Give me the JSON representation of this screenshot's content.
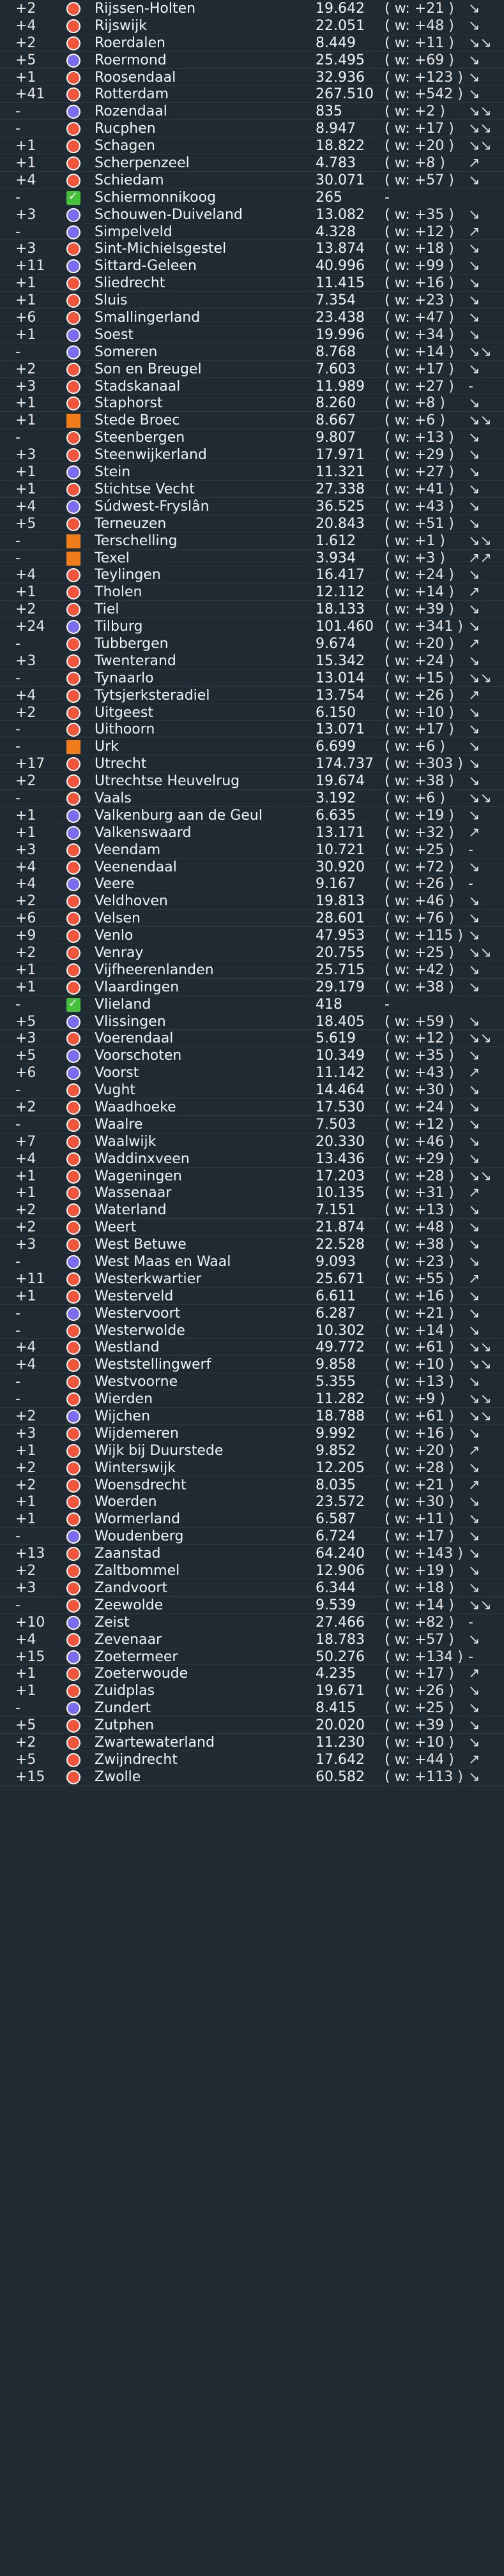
{
  "rows": [
    {
      "delta": "+2",
      "icon": "red",
      "name": "Rijssen-Holten",
      "value": "19.642",
      "w": "( w: +21 )",
      "trend": "↘"
    },
    {
      "delta": "+4",
      "icon": "red",
      "name": "Rijswijk",
      "value": "22.051",
      "w": "( w: +48 )",
      "trend": "↘"
    },
    {
      "delta": "+2",
      "icon": "red",
      "name": "Roerdalen",
      "value": "8.449",
      "w": "( w: +11 )",
      "trend": "↘↘"
    },
    {
      "delta": "+5",
      "icon": "purple",
      "name": "Roermond",
      "value": "25.495",
      "w": "( w: +69 )",
      "trend": "↘"
    },
    {
      "delta": "+1",
      "icon": "red",
      "name": "Roosendaal",
      "value": "32.936",
      "w": "( w: +123 )",
      "trend": "↘"
    },
    {
      "delta": "+41",
      "icon": "red",
      "name": "Rotterdam",
      "value": "267.510",
      "w": "( w: +542 )",
      "trend": "↘"
    },
    {
      "delta": "-",
      "icon": "purple",
      "name": "Rozendaal",
      "value": "835",
      "w": "( w: +2 )",
      "trend": "↘↘"
    },
    {
      "delta": "-",
      "icon": "red",
      "name": "Rucphen",
      "value": "8.947",
      "w": "( w: +17 )",
      "trend": "↘↘"
    },
    {
      "delta": "+1",
      "icon": "red",
      "name": "Schagen",
      "value": "18.822",
      "w": "( w: +20 )",
      "trend": "↘↘"
    },
    {
      "delta": "+1",
      "icon": "red",
      "name": "Scherpenzeel",
      "value": "4.783",
      "w": "( w: +8 )",
      "trend": "↗"
    },
    {
      "delta": "+4",
      "icon": "red",
      "name": "Schiedam",
      "value": "30.071",
      "w": "( w: +57 )",
      "trend": "↘"
    },
    {
      "delta": "-",
      "icon": "green",
      "name": "Schiermonnikoog",
      "value": "265",
      "w": "-",
      "trend": ""
    },
    {
      "delta": "+3",
      "icon": "purple",
      "name": "Schouwen-Duiveland",
      "value": "13.082",
      "w": "( w: +35 )",
      "trend": "↘"
    },
    {
      "delta": "-",
      "icon": "purple",
      "name": "Simpelveld",
      "value": "4.328",
      "w": "( w: +12 )",
      "trend": "↗"
    },
    {
      "delta": "+3",
      "icon": "red",
      "name": "Sint-Michielsgestel",
      "value": "13.874",
      "w": "( w: +18 )",
      "trend": "↘"
    },
    {
      "delta": "+11",
      "icon": "purple",
      "name": "Sittard-Geleen",
      "value": "40.996",
      "w": "( w: +99 )",
      "trend": "↘"
    },
    {
      "delta": "+1",
      "icon": "red",
      "name": "Sliedrecht",
      "value": "11.415",
      "w": "( w: +16 )",
      "trend": "↘"
    },
    {
      "delta": "+1",
      "icon": "red",
      "name": "Sluis",
      "value": "7.354",
      "w": "( w: +23 )",
      "trend": "↘"
    },
    {
      "delta": "+6",
      "icon": "red",
      "name": "Smallingerland",
      "value": "23.438",
      "w": "( w: +47 )",
      "trend": "↘"
    },
    {
      "delta": "+1",
      "icon": "purple",
      "name": "Soest",
      "value": "19.996",
      "w": "( w: +34 )",
      "trend": "↘"
    },
    {
      "delta": "-",
      "icon": "purple",
      "name": "Someren",
      "value": "8.768",
      "w": "( w: +14 )",
      "trend": "↘↘"
    },
    {
      "delta": "+2",
      "icon": "red",
      "name": "Son en Breugel",
      "value": "7.603",
      "w": "( w: +17 )",
      "trend": "↘"
    },
    {
      "delta": "+3",
      "icon": "red",
      "name": "Stadskanaal",
      "value": "11.989",
      "w": "( w: +27 )",
      "trend": "-"
    },
    {
      "delta": "+1",
      "icon": "red",
      "name": "Staphorst",
      "value": "8.260",
      "w": "( w: +8 )",
      "trend": "↘"
    },
    {
      "delta": "+1",
      "icon": "orange",
      "name": "Stede Broec",
      "value": "8.667",
      "w": "( w: +6 )",
      "trend": "↘↘"
    },
    {
      "delta": "-",
      "icon": "red",
      "name": "Steenbergen",
      "value": "9.807",
      "w": "( w: +13 )",
      "trend": "↘"
    },
    {
      "delta": "+3",
      "icon": "red",
      "name": "Steenwijkerland",
      "value": "17.971",
      "w": "( w: +29 )",
      "trend": "↘"
    },
    {
      "delta": "+1",
      "icon": "purple",
      "name": "Stein",
      "value": "11.321",
      "w": "( w: +27 )",
      "trend": "↘"
    },
    {
      "delta": "+1",
      "icon": "red",
      "name": "Stichtse Vecht",
      "value": "27.338",
      "w": "( w: +41 )",
      "trend": "↘"
    },
    {
      "delta": "+4",
      "icon": "purple",
      "name": "Súdwest-Fryslân",
      "value": "36.525",
      "w": "( w: +43 )",
      "trend": "↘"
    },
    {
      "delta": "+5",
      "icon": "red",
      "name": "Terneuzen",
      "value": "20.843",
      "w": "( w: +51 )",
      "trend": "↘"
    },
    {
      "delta": "-",
      "icon": "orange",
      "name": "Terschelling",
      "value": "1.612",
      "w": "( w: +1 )",
      "trend": "↘↘"
    },
    {
      "delta": "-",
      "icon": "orange",
      "name": "Texel",
      "value": "3.934",
      "w": "( w: +3 )",
      "trend": "↗↗"
    },
    {
      "delta": "+4",
      "icon": "red",
      "name": "Teylingen",
      "value": "16.417",
      "w": "( w: +24 )",
      "trend": "↘"
    },
    {
      "delta": "+1",
      "icon": "red",
      "name": "Tholen",
      "value": "12.112",
      "w": "( w: +14 )",
      "trend": "↗"
    },
    {
      "delta": "+2",
      "icon": "red",
      "name": "Tiel",
      "value": "18.133",
      "w": "( w: +39 )",
      "trend": "↘"
    },
    {
      "delta": "+24",
      "icon": "purple",
      "name": "Tilburg",
      "value": "101.460",
      "w": "( w: +341 )",
      "trend": "↘"
    },
    {
      "delta": "-",
      "icon": "red",
      "name": "Tubbergen",
      "value": "9.674",
      "w": "( w: +20 )",
      "trend": "↗"
    },
    {
      "delta": "+3",
      "icon": "red",
      "name": "Twenterand",
      "value": "15.342",
      "w": "( w: +24 )",
      "trend": "↘"
    },
    {
      "delta": "-",
      "icon": "red",
      "name": "Tynaarlo",
      "value": "13.014",
      "w": "( w: +15 )",
      "trend": "↘↘"
    },
    {
      "delta": "+4",
      "icon": "red",
      "name": "Tytsjerksteradiel",
      "value": "13.754",
      "w": "( w: +26 )",
      "trend": "↗"
    },
    {
      "delta": "+2",
      "icon": "red",
      "name": "Uitgeest",
      "value": "6.150",
      "w": "( w: +10 )",
      "trend": "↘"
    },
    {
      "delta": "-",
      "icon": "red",
      "name": "Uithoorn",
      "value": "13.071",
      "w": "( w: +17 )",
      "trend": "↘"
    },
    {
      "delta": "-",
      "icon": "orange",
      "name": "Urk",
      "value": "6.699",
      "w": "( w: +6 )",
      "trend": "↘"
    },
    {
      "delta": "+17",
      "icon": "red",
      "name": "Utrecht",
      "value": "174.737",
      "w": "( w: +303 )",
      "trend": "↘"
    },
    {
      "delta": "+2",
      "icon": "red",
      "name": "Utrechtse Heuvelrug",
      "value": "19.674",
      "w": "( w: +38 )",
      "trend": "↘"
    },
    {
      "delta": "-",
      "icon": "red",
      "name": "Vaals",
      "value": "3.192",
      "w": "( w: +6 )",
      "trend": "↘↘"
    },
    {
      "delta": "+1",
      "icon": "purple",
      "name": "Valkenburg aan de Geul",
      "value": "6.635",
      "w": "( w: +19 )",
      "trend": "↘"
    },
    {
      "delta": "+1",
      "icon": "purple",
      "name": "Valkenswaard",
      "value": "13.171",
      "w": "( w: +32 )",
      "trend": "↗"
    },
    {
      "delta": "+3",
      "icon": "red",
      "name": "Veendam",
      "value": "10.721",
      "w": "( w: +25 )",
      "trend": "-"
    },
    {
      "delta": "+4",
      "icon": "red",
      "name": "Veenendaal",
      "value": "30.920",
      "w": "( w: +72 )",
      "trend": "↘"
    },
    {
      "delta": "+4",
      "icon": "purple",
      "name": "Veere",
      "value": "9.167",
      "w": "( w: +26 )",
      "trend": "-"
    },
    {
      "delta": "+2",
      "icon": "red",
      "name": "Veldhoven",
      "value": "19.813",
      "w": "( w: +46 )",
      "trend": "↘"
    },
    {
      "delta": "+6",
      "icon": "red",
      "name": "Velsen",
      "value": "28.601",
      "w": "( w: +76 )",
      "trend": "↘"
    },
    {
      "delta": "+9",
      "icon": "red",
      "name": "Venlo",
      "value": "47.953",
      "w": "( w: +115 )",
      "trend": "↘"
    },
    {
      "delta": "+2",
      "icon": "red",
      "name": "Venray",
      "value": "20.755",
      "w": "( w: +25 )",
      "trend": "↘↘"
    },
    {
      "delta": "+1",
      "icon": "red",
      "name": "Vijfheerenlanden",
      "value": "25.715",
      "w": "( w: +42 )",
      "trend": "↘"
    },
    {
      "delta": "+1",
      "icon": "red",
      "name": "Vlaardingen",
      "value": "29.179",
      "w": "( w: +38 )",
      "trend": "↘"
    },
    {
      "delta": "-",
      "icon": "green",
      "name": "Vlieland",
      "value": "418",
      "w": "-",
      "trend": ""
    },
    {
      "delta": "+5",
      "icon": "purple",
      "name": "Vlissingen",
      "value": "18.405",
      "w": "( w: +59 )",
      "trend": "↘"
    },
    {
      "delta": "+3",
      "icon": "red",
      "name": "Voerendaal",
      "value": "5.619",
      "w": "( w: +12 )",
      "trend": "↘↘"
    },
    {
      "delta": "+5",
      "icon": "purple",
      "name": "Voorschoten",
      "value": "10.349",
      "w": "( w: +35 )",
      "trend": "↘"
    },
    {
      "delta": "+6",
      "icon": "purple",
      "name": "Voorst",
      "value": "11.142",
      "w": "( w: +43 )",
      "trend": "↗"
    },
    {
      "delta": "-",
      "icon": "red",
      "name": "Vught",
      "value": "14.464",
      "w": "( w: +30 )",
      "trend": "↘"
    },
    {
      "delta": "+2",
      "icon": "red",
      "name": "Waadhoeke",
      "value": "17.530",
      "w": "( w: +24 )",
      "trend": "↘"
    },
    {
      "delta": "-",
      "icon": "red",
      "name": "Waalre",
      "value": "7.503",
      "w": "( w: +12 )",
      "trend": "↘"
    },
    {
      "delta": "+7",
      "icon": "red",
      "name": "Waalwijk",
      "value": "20.330",
      "w": "( w: +46 )",
      "trend": "↘"
    },
    {
      "delta": "+4",
      "icon": "red",
      "name": "Waddinxveen",
      "value": "13.436",
      "w": "( w: +29 )",
      "trend": "↘"
    },
    {
      "delta": "+1",
      "icon": "red",
      "name": "Wageningen",
      "value": "17.203",
      "w": "( w: +28 )",
      "trend": "↘↘"
    },
    {
      "delta": "+1",
      "icon": "red",
      "name": "Wassenaar",
      "value": "10.135",
      "w": "( w: +31 )",
      "trend": "↗"
    },
    {
      "delta": "+2",
      "icon": "red",
      "name": "Waterland",
      "value": "7.151",
      "w": "( w: +13 )",
      "trend": "↘"
    },
    {
      "delta": "+2",
      "icon": "red",
      "name": "Weert",
      "value": "21.874",
      "w": "( w: +48 )",
      "trend": "↘"
    },
    {
      "delta": "+3",
      "icon": "red",
      "name": "West Betuwe",
      "value": "22.528",
      "w": "( w: +38 )",
      "trend": "↘"
    },
    {
      "delta": "-",
      "icon": "purple",
      "name": "West Maas en Waal",
      "value": "9.093",
      "w": "( w: +23 )",
      "trend": "↘"
    },
    {
      "delta": "+11",
      "icon": "red",
      "name": "Westerkwartier",
      "value": "25.671",
      "w": "( w: +55 )",
      "trend": "↗"
    },
    {
      "delta": "+1",
      "icon": "red",
      "name": "Westerveld",
      "value": "6.611",
      "w": "( w: +16 )",
      "trend": "↘"
    },
    {
      "delta": "-",
      "icon": "purple",
      "name": "Westervoort",
      "value": "6.287",
      "w": "( w: +21 )",
      "trend": "↘"
    },
    {
      "delta": "-",
      "icon": "red",
      "name": "Westerwolde",
      "value": "10.302",
      "w": "( w: +14 )",
      "trend": "↘"
    },
    {
      "delta": "+4",
      "icon": "red",
      "name": "Westland",
      "value": "49.772",
      "w": "( w: +61 )",
      "trend": "↘↘"
    },
    {
      "delta": "+4",
      "icon": "red",
      "name": "Weststellingwerf",
      "value": "9.858",
      "w": "( w: +10 )",
      "trend": "↘↘"
    },
    {
      "delta": "-",
      "icon": "red",
      "name": "Westvoorne",
      "value": "5.355",
      "w": "( w: +13 )",
      "trend": "↘"
    },
    {
      "delta": "-",
      "icon": "red",
      "name": "Wierden",
      "value": "11.282",
      "w": "( w: +9 )",
      "trend": "↘↘"
    },
    {
      "delta": "+2",
      "icon": "purple",
      "name": "Wijchen",
      "value": "18.788",
      "w": "( w: +61 )",
      "trend": "↘↘"
    },
    {
      "delta": "+3",
      "icon": "red",
      "name": "Wijdemeren",
      "value": "9.992",
      "w": "( w: +16 )",
      "trend": "↘"
    },
    {
      "delta": "+1",
      "icon": "red",
      "name": "Wijk bij Duurstede",
      "value": "9.852",
      "w": "( w: +20 )",
      "trend": "↗"
    },
    {
      "delta": "+2",
      "icon": "red",
      "name": "Winterswijk",
      "value": "12.205",
      "w": "( w: +28 )",
      "trend": "↘"
    },
    {
      "delta": "+2",
      "icon": "red",
      "name": "Woensdrecht",
      "value": "8.035",
      "w": "( w: +21 )",
      "trend": "↗"
    },
    {
      "delta": "+1",
      "icon": "red",
      "name": "Woerden",
      "value": "23.572",
      "w": "( w: +30 )",
      "trend": "↘"
    },
    {
      "delta": "+1",
      "icon": "red",
      "name": "Wormerland",
      "value": "6.587",
      "w": "( w: +11 )",
      "trend": "↘"
    },
    {
      "delta": "-",
      "icon": "purple",
      "name": "Woudenberg",
      "value": "6.724",
      "w": "( w: +17 )",
      "trend": "↘"
    },
    {
      "delta": "+13",
      "icon": "red",
      "name": "Zaanstad",
      "value": "64.240",
      "w": "( w: +143 )",
      "trend": "↘"
    },
    {
      "delta": "+2",
      "icon": "red",
      "name": "Zaltbommel",
      "value": "12.906",
      "w": "( w: +19 )",
      "trend": "↘"
    },
    {
      "delta": "+3",
      "icon": "red",
      "name": "Zandvoort",
      "value": "6.344",
      "w": "( w: +18 )",
      "trend": "↘"
    },
    {
      "delta": "-",
      "icon": "red",
      "name": "Zeewolde",
      "value": "9.539",
      "w": "( w: +14 )",
      "trend": "↘↘"
    },
    {
      "delta": "+10",
      "icon": "purple",
      "name": "Zeist",
      "value": "27.466",
      "w": "( w: +82 )",
      "trend": "-"
    },
    {
      "delta": "+4",
      "icon": "red",
      "name": "Zevenaar",
      "value": "18.783",
      "w": "( w: +57 )",
      "trend": "↘"
    },
    {
      "delta": "+15",
      "icon": "purple",
      "name": "Zoetermeer",
      "value": "50.276",
      "w": "( w: +134 )",
      "trend": "-"
    },
    {
      "delta": "+1",
      "icon": "red",
      "name": "Zoeterwoude",
      "value": "4.235",
      "w": "( w: +17 )",
      "trend": "↗"
    },
    {
      "delta": "+1",
      "icon": "red",
      "name": "Zuidplas",
      "value": "19.671",
      "w": "( w: +26 )",
      "trend": "↘"
    },
    {
      "delta": "-",
      "icon": "purple",
      "name": "Zundert",
      "value": "8.415",
      "w": "( w: +25 )",
      "trend": "↘"
    },
    {
      "delta": "+5",
      "icon": "red",
      "name": "Zutphen",
      "value": "20.020",
      "w": "( w: +39 )",
      "trend": "↘"
    },
    {
      "delta": "+2",
      "icon": "red",
      "name": "Zwartewaterland",
      "value": "11.230",
      "w": "( w: +10 )",
      "trend": "↘"
    },
    {
      "delta": "+5",
      "icon": "red",
      "name": "Zwijndrecht",
      "value": "17.642",
      "w": "( w: +44 )",
      "trend": "↗"
    },
    {
      "delta": "+15",
      "icon": "red",
      "name": "Zwolle",
      "value": "60.582",
      "w": "( w: +113 )",
      "trend": "↘"
    }
  ]
}
